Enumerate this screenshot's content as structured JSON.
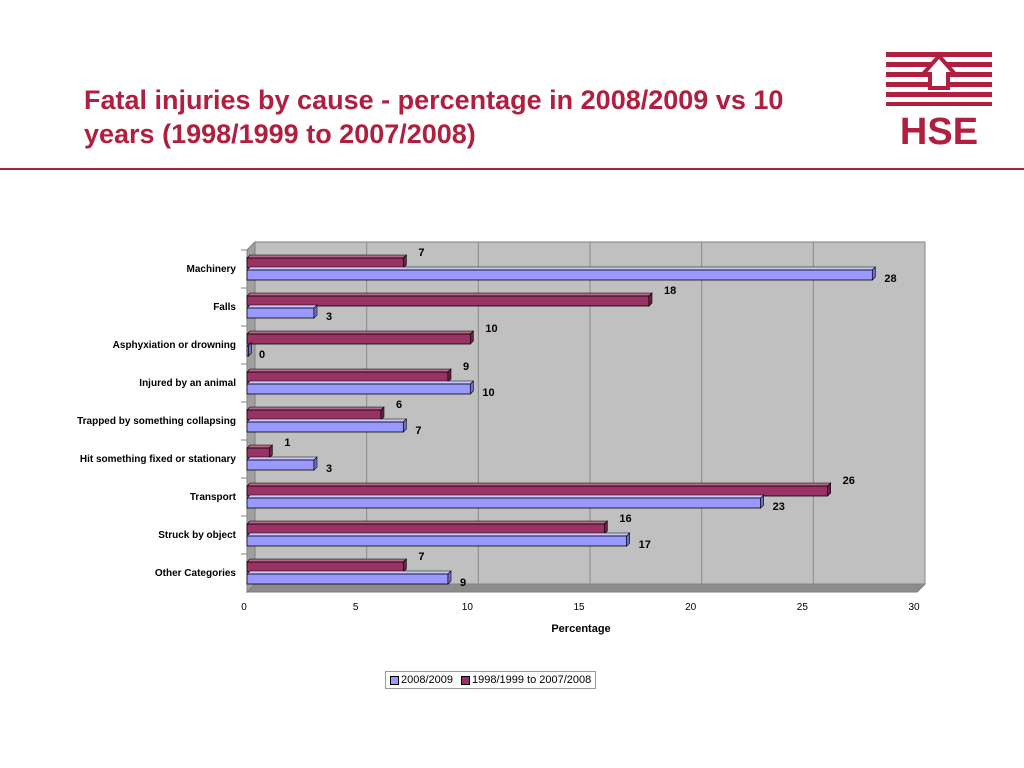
{
  "slide": {
    "title": "Fatal injuries by cause - percentage in 2008/2009 vs 10 years (1998/1999 to 2007/2008)",
    "logo_text": "HSE"
  },
  "colors": {
    "title": "#b01f3f",
    "series_2008": "#9999ff",
    "series_decade": "#993366",
    "plot_bg": "#c0c0c0"
  },
  "chart_data": {
    "type": "bar",
    "orientation": "horizontal",
    "categories": [
      "Machinery",
      "Falls",
      "Asphyxiation or drowning",
      "Injured by an animal",
      "Trapped by something collapsing",
      "Hit something fixed or stationary",
      "Transport",
      "Struck by object",
      "Other Categories"
    ],
    "series": [
      {
        "name": "2008/2009",
        "values": [
          28,
          3,
          0,
          10,
          7,
          3,
          23,
          17,
          9
        ]
      },
      {
        "name": "1998/1999 to 2007/2008",
        "values": [
          7,
          18,
          10,
          9,
          6,
          1,
          26,
          16,
          7
        ]
      }
    ],
    "xlabel": "Percentage",
    "ylabel": "",
    "xlim": [
      0,
      30
    ],
    "xticks": [
      0,
      5,
      10,
      15,
      20,
      25,
      30
    ],
    "grid": true,
    "legend": "bottom"
  }
}
